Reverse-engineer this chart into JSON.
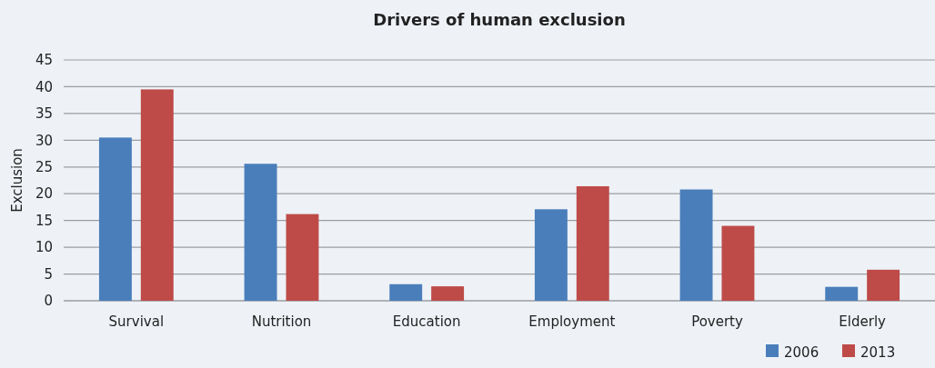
{
  "chart_data": {
    "type": "bar",
    "title": "Drivers of human exclusion",
    "ylabel": "Exclusion",
    "categories": [
      "Survival",
      "Nutrition",
      "Education",
      "Employment",
      "Poverty",
      "Elderly"
    ],
    "series": [
      {
        "name": "2006",
        "color": "#4a7ebb",
        "values": [
          30.5,
          25.6,
          3.1,
          17.1,
          20.8,
          2.6
        ]
      },
      {
        "name": "2013",
        "color": "#be4b48",
        "values": [
          39.5,
          16.2,
          2.7,
          21.4,
          14.0,
          5.8
        ]
      }
    ],
    "ylim": [
      0,
      45
    ],
    "yticks": [
      0,
      5,
      10,
      15,
      20,
      25,
      30,
      35,
      40,
      45
    ],
    "grid": true,
    "legend": "bottom right"
  }
}
